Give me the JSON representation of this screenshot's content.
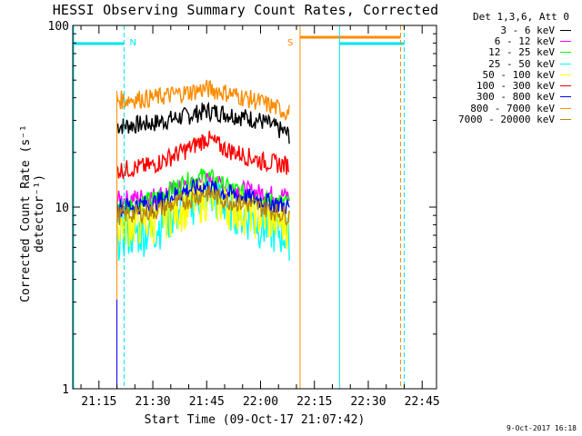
{
  "chart_data": {
    "type": "line",
    "title": "HESSI Observing Summary Count Rates, Corrected",
    "xlabel": "Start Time (09-Oct-17 21:07:42)",
    "ylabel": "Corrected Count Rate (s⁻¹ detector⁻¹)",
    "yscale": "log",
    "ylim": [
      1,
      100
    ],
    "yticks": [
      1,
      10,
      100
    ],
    "ytick_labels": [
      "1",
      "10",
      "100"
    ],
    "xlim": [
      "21:07:42",
      "22:49:00"
    ],
    "xticks": [
      "21:15",
      "21:30",
      "21:45",
      "22:00",
      "22:15",
      "22:30",
      "22:45"
    ],
    "legend_title": "Det 1,3,6, Att 0",
    "legend_position": "top-right, outside plot",
    "series": [
      {
        "name": "3 - 6 keV",
        "color": "#000000",
        "x": [
          "21:20",
          "21:30",
          "21:40",
          "21:45",
          "21:50",
          "22:00",
          "22:08"
        ],
        "values": [
          28,
          29,
          32,
          34,
          33,
          30,
          25
        ]
      },
      {
        "name": "6 - 12 keV",
        "color": "#ff00ff",
        "x": [
          "21:20",
          "21:30",
          "21:40",
          "21:45",
          "21:50",
          "22:00",
          "22:08"
        ],
        "values": [
          11,
          11.5,
          13,
          14,
          13,
          12,
          11.5
        ]
      },
      {
        "name": "12 - 25 keV",
        "color": "#00ff00",
        "x": [
          "21:20",
          "21:30",
          "21:40",
          "21:45",
          "21:50",
          "22:00",
          "22:08"
        ],
        "values": [
          10,
          11,
          14,
          15,
          13,
          11,
          10.5
        ]
      },
      {
        "name": "25 - 50 keV",
        "color": "#00ffff",
        "x": [
          "21:20",
          "21:30",
          "21:40",
          "21:45",
          "21:50",
          "22:00",
          "22:08"
        ],
        "values": [
          7,
          7.5,
          10.5,
          12,
          10.5,
          8,
          7
        ]
      },
      {
        "name": "50 - 100 keV",
        "color": "#ffff00",
        "x": [
          "21:20",
          "21:30",
          "21:40",
          "21:45",
          "21:50",
          "22:00",
          "22:08"
        ],
        "values": [
          8,
          8.5,
          10.5,
          11.5,
          10.5,
          9,
          8
        ]
      },
      {
        "name": "100 - 300 keV",
        "color": "#ff0000",
        "x": [
          "21:20",
          "21:30",
          "21:40",
          "21:45",
          "21:50",
          "22:00",
          "22:08"
        ],
        "values": [
          16,
          17,
          21,
          24,
          21,
          18,
          17
        ]
      },
      {
        "name": "300 - 800 keV",
        "color": "#0000ff",
        "x": [
          "21:20",
          "21:30",
          "21:40",
          "21:45",
          "21:50",
          "22:00",
          "22:08"
        ],
        "values": [
          10,
          10.5,
          12.5,
          13,
          12,
          11,
          10
        ]
      },
      {
        "name": "800 - 7000 keV",
        "color": "#ff8c00",
        "x": [
          "21:20",
          "21:30",
          "21:40",
          "21:45",
          "21:50",
          "22:00",
          "22:08"
        ],
        "values": [
          39,
          40,
          43,
          45,
          43,
          38,
          33
        ]
      },
      {
        "name": "7000 - 20000 keV",
        "color": "#b8860b",
        "x": [
          "21:20",
          "21:30",
          "21:40",
          "21:45",
          "21:50",
          "22:00",
          "22:08"
        ],
        "values": [
          9,
          9.5,
          11,
          12,
          11,
          10,
          9
        ]
      }
    ],
    "annotations": [
      {
        "text": "N",
        "at": "21:22",
        "color": "#00e5ee",
        "style": "cyan horizontal bar 21:07:42-21:22, dashed vertical at 21:22"
      },
      {
        "text": "S",
        "at": "22:11",
        "color": "#ff8c00",
        "style": "orange horizontal bar 22:11-22:39, solid vertical at 22:11"
      },
      {
        "text": "",
        "at": "22:22",
        "color": "#00e5ee",
        "style": "cyan bar 22:22-22:40 with solid vertical at 22:22 and dashed vertical at 22:40"
      }
    ],
    "grid": false
  },
  "footer": {
    "date_stamp": "9-Oct-2017 16:18"
  }
}
